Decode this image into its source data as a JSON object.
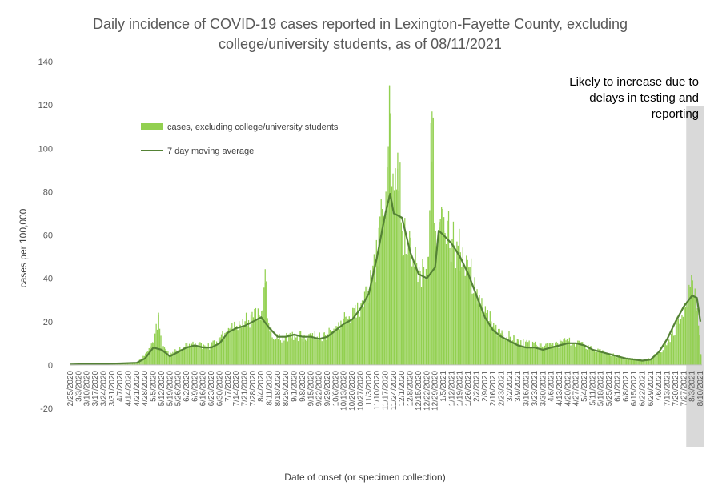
{
  "chart_data": {
    "type": "bar",
    "title_lines": [
      "Daily incidence of COVID-19 cases reported in Lexington-Fayette County, excluding",
      "college/university students, as of 08/11/2021"
    ],
    "xlabel": "Date of onset (or specimen collection)",
    "ylabel": "cases per 100,000",
    "ylim": [
      -20,
      140
    ],
    "yticks": [
      -20,
      0,
      20,
      40,
      60,
      80,
      100,
      120,
      140
    ],
    "x_start": "2020-02-25",
    "x_end": "2021-08-10",
    "x_tick_labels": [
      "2/25/2020",
      "3/3/2020",
      "3/10/2020",
      "3/17/2020",
      "3/24/2020",
      "3/31/2020",
      "4/7/2020",
      "4/14/2020",
      "4/21/2020",
      "4/28/2020",
      "5/5/2020",
      "5/12/2020",
      "5/19/2020",
      "5/26/2020",
      "6/2/2020",
      "6/9/2020",
      "6/16/2020",
      "6/23/2020",
      "6/30/2020",
      "7/7/2020",
      "7/14/2020",
      "7/21/2020",
      "7/28/2020",
      "8/4/2020",
      "8/11/2020",
      "8/18/2020",
      "8/25/2020",
      "9/1/2020",
      "9/8/2020",
      "9/15/2020",
      "9/22/2020",
      "9/29/2020",
      "10/6/2020",
      "10/13/2020",
      "10/20/2020",
      "10/27/2020",
      "11/3/2020",
      "11/10/2020",
      "11/17/2020",
      "11/24/2020",
      "12/1/2020",
      "12/8/2020",
      "12/15/2020",
      "12/22/2020",
      "12/29/2020",
      "1/5/2021",
      "1/12/2021",
      "1/19/2021",
      "1/26/2021",
      "2/2/2021",
      "2/9/2021",
      "2/16/2021",
      "2/23/2021",
      "3/2/2021",
      "3/9/2021",
      "3/16/2021",
      "3/23/2021",
      "3/30/2021",
      "4/6/2021",
      "4/13/2021",
      "4/20/2021",
      "4/27/2021",
      "5/4/2021",
      "5/11/2021",
      "5/18/2021",
      "5/25/2021",
      "6/1/2021",
      "6/8/2021",
      "6/15/2021",
      "6/22/2021",
      "6/29/2021",
      "7/6/2021",
      "7/13/2021",
      "7/20/2021",
      "7/27/2021",
      "8/3/2021",
      "8/10/2021"
    ],
    "series": [
      {
        "name": "cases, excluding college/university students",
        "kind": "bar",
        "color": "#92d050",
        "dates": [
          "2020-02-25",
          "2020-03-10",
          "2020-03-24",
          "2020-04-07",
          "2020-04-21",
          "2020-04-28",
          "2020-05-05",
          "2020-05-09",
          "2020-05-12",
          "2020-05-19",
          "2020-05-26",
          "2020-06-02",
          "2020-06-09",
          "2020-06-16",
          "2020-06-23",
          "2020-06-30",
          "2020-07-07",
          "2020-07-14",
          "2020-07-21",
          "2020-07-28",
          "2020-08-04",
          "2020-08-07",
          "2020-08-11",
          "2020-08-18",
          "2020-08-25",
          "2020-09-01",
          "2020-09-08",
          "2020-09-15",
          "2020-09-22",
          "2020-09-29",
          "2020-10-06",
          "2020-10-13",
          "2020-10-20",
          "2020-10-27",
          "2020-11-03",
          "2020-11-10",
          "2020-11-14",
          "2020-11-17",
          "2020-11-20",
          "2020-11-24",
          "2020-11-27",
          "2020-12-01",
          "2020-12-08",
          "2020-12-15",
          "2020-12-22",
          "2020-12-26",
          "2020-12-29",
          "2021-01-01",
          "2021-01-05",
          "2021-01-12",
          "2021-01-19",
          "2021-01-26",
          "2021-02-02",
          "2021-02-09",
          "2021-02-16",
          "2021-02-23",
          "2021-03-02",
          "2021-03-09",
          "2021-03-16",
          "2021-03-23",
          "2021-03-30",
          "2021-04-06",
          "2021-04-13",
          "2021-04-20",
          "2021-04-27",
          "2021-05-04",
          "2021-05-11",
          "2021-05-18",
          "2021-05-25",
          "2021-06-01",
          "2021-06-08",
          "2021-06-15",
          "2021-06-22",
          "2021-06-29",
          "2021-07-06",
          "2021-07-13",
          "2021-07-20",
          "2021-07-27",
          "2021-08-03",
          "2021-08-07",
          "2021-08-10"
        ],
        "values": [
          0.3,
          0.5,
          0.5,
          0.8,
          1.0,
          5,
          10,
          23,
          8,
          5,
          7,
          9,
          10,
          8,
          9,
          12,
          17,
          18,
          20,
          22,
          25,
          38,
          15,
          12,
          13,
          14,
          13,
          14,
          13,
          14,
          18,
          21,
          22,
          28,
          35,
          52,
          72,
          80,
          129,
          75,
          98,
          62,
          50,
          45,
          44,
          117,
          55,
          66,
          62,
          58,
          52,
          45,
          35,
          25,
          18,
          15,
          13,
          11,
          10,
          9,
          8,
          9,
          10,
          11,
          10,
          9,
          7,
          6,
          5,
          4,
          3,
          3,
          2,
          3,
          6,
          10,
          18,
          26,
          39,
          25,
          5
        ]
      },
      {
        "name": "7 day moving average",
        "kind": "line",
        "color": "#548235",
        "dates": [
          "2020-02-25",
          "2020-03-10",
          "2020-03-24",
          "2020-04-07",
          "2020-04-21",
          "2020-04-28",
          "2020-05-05",
          "2020-05-12",
          "2020-05-19",
          "2020-05-26",
          "2020-06-02",
          "2020-06-09",
          "2020-06-16",
          "2020-06-23",
          "2020-06-30",
          "2020-07-07",
          "2020-07-14",
          "2020-07-21",
          "2020-07-28",
          "2020-08-04",
          "2020-08-11",
          "2020-08-18",
          "2020-08-25",
          "2020-09-01",
          "2020-09-08",
          "2020-09-15",
          "2020-09-22",
          "2020-09-29",
          "2020-10-06",
          "2020-10-13",
          "2020-10-20",
          "2020-10-27",
          "2020-11-03",
          "2020-11-10",
          "2020-11-17",
          "2020-11-21",
          "2020-11-24",
          "2020-12-01",
          "2020-12-08",
          "2020-12-15",
          "2020-12-22",
          "2020-12-29",
          "2021-01-01",
          "2021-01-05",
          "2021-01-12",
          "2021-01-19",
          "2021-01-26",
          "2021-02-02",
          "2021-02-09",
          "2021-02-16",
          "2021-02-23",
          "2021-03-02",
          "2021-03-09",
          "2021-03-16",
          "2021-03-23",
          "2021-03-30",
          "2021-04-06",
          "2021-04-13",
          "2021-04-20",
          "2021-04-27",
          "2021-05-04",
          "2021-05-11",
          "2021-05-18",
          "2021-05-25",
          "2021-06-01",
          "2021-06-08",
          "2021-06-15",
          "2021-06-22",
          "2021-06-29",
          "2021-07-06",
          "2021-07-13",
          "2021-07-20",
          "2021-07-27",
          "2021-08-03",
          "2021-08-07",
          "2021-08-10"
        ],
        "values": [
          0.2,
          0.4,
          0.5,
          0.7,
          1.0,
          3,
          8,
          7,
          4,
          6,
          8,
          9,
          8,
          8,
          10,
          15,
          17,
          18,
          20,
          22,
          17,
          13,
          13,
          14,
          13,
          13,
          12,
          13,
          16,
          19,
          21,
          26,
          33,
          50,
          70,
          79,
          70,
          68,
          52,
          42,
          40,
          45,
          62,
          60,
          56,
          50,
          42,
          32,
          22,
          16,
          13,
          11,
          9,
          8,
          8,
          7,
          8,
          9,
          10,
          10,
          9,
          7,
          6,
          5,
          4,
          3,
          2.5,
          2,
          2.5,
          6,
          12,
          20,
          27,
          32,
          31,
          20
        ]
      }
    ],
    "legend": "top-left",
    "shaded_region": {
      "start": "2021-07-29",
      "end": "2021-08-10",
      "color": "#d9d9d9"
    },
    "annotation": [
      "Likely to increase due to",
      "delays in testing and",
      "reporting"
    ],
    "grid": false
  }
}
